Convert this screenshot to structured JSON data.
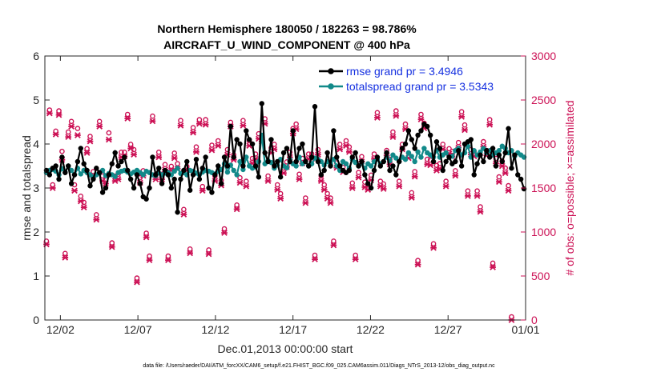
{
  "chart_data": {
    "type": "line",
    "title_line1": "Northern Hemisphere 180050 / 182263 = 98.786%",
    "title_line2": "AIRCRAFT_U_WIND_COMPONENT @ 400 hPa",
    "xlabel": "Dec.01,2013 00:00:00 start",
    "ylabel_left": "rmse and totalspread",
    "ylabel_right": "# of obs: o=possible; ×=assimilated",
    "footnote": "data file: /Users/raeder/DAI/ATM_forcXX/CAM6_setup/f.e21.FHIST_BGC.f09_025.CAM6assim.011/Diags_NTrS_2013-12/obs_diag_output.nc",
    "xlim": [
      0,
      31
    ],
    "ylim_left": [
      0,
      6
    ],
    "ylim_right": [
      0,
      3000
    ],
    "x_tick_positions": [
      1,
      6,
      11,
      16,
      21,
      26,
      31
    ],
    "x_tick_labels": [
      "12/02",
      "12/07",
      "12/12",
      "12/17",
      "12/22",
      "12/27",
      "01/01"
    ],
    "y_left_ticks": [
      "0",
      "1",
      "2",
      "3",
      "4",
      "5",
      "6"
    ],
    "y_right_ticks": [
      "0",
      "500",
      "1000",
      "1500",
      "2000",
      "2500",
      "3000"
    ],
    "colors": {
      "rmse": "#000000",
      "spread": "#128a8a",
      "obs": "#cc1155",
      "legend_rmse": "#1530e0",
      "legend_spread": "#1530e0"
    },
    "series": [
      {
        "name": "rmse grand pr = 3.4946",
        "values": [
          3.4,
          3.3,
          3.45,
          3.5,
          3.2,
          3.7,
          3.35,
          3.5,
          3.1,
          3.3,
          3.6,
          3.9,
          3.55,
          3.4,
          3.05,
          3.2,
          3.45,
          3.35,
          2.9,
          3.0,
          3.3,
          3.55,
          3.8,
          3.5,
          3.6,
          3.7,
          3.4,
          3.2,
          3.0,
          3.3,
          3.1,
          2.8,
          2.75,
          3.0,
          3.7,
          3.3,
          3.45,
          3.1,
          3.4,
          3.3,
          3.0,
          3.2,
          2.45,
          3.2,
          3.4,
          3.6,
          2.95,
          3.3,
          3.65,
          3.2,
          3.45,
          3.7,
          3.0,
          2.9,
          3.3,
          3.5,
          3.1,
          3.7,
          3.5,
          4.4,
          3.7,
          4.1,
          4.0,
          3.5,
          4.3,
          4.1,
          4.0,
          3.5,
          3.25,
          4.92,
          3.8,
          3.6,
          4.1,
          3.5,
          3.6,
          3.25,
          3.8,
          3.9,
          3.6,
          4.3,
          3.6,
          3.9,
          4.0,
          3.6,
          3.5,
          3.7,
          4.85,
          3.6,
          3.3,
          3.4,
          3.8,
          3.5,
          4.3,
          3.7,
          3.5,
          3.4,
          3.35,
          3.4,
          3.7,
          3.8,
          3.5,
          3.6,
          3.3,
          3.1,
          3.0,
          3.4,
          3.7,
          3.5,
          3.6,
          3.8,
          3.4,
          3.5,
          3.3,
          3.6,
          3.9,
          4.0,
          4.3,
          4.1,
          3.9,
          4.2,
          4.3,
          4.45,
          4.4,
          4.2,
          3.6,
          4.05,
          3.9,
          3.4,
          3.6,
          3.7,
          3.55,
          3.6,
          3.85,
          3.5,
          4.0,
          4.05,
          4.1,
          3.3,
          3.55,
          3.75,
          3.6,
          3.85,
          3.7,
          3.9,
          3.5,
          3.75,
          3.6,
          3.8,
          4.35,
          3.45,
          3.75,
          3.3,
          3.2,
          2.98
        ]
      },
      {
        "name": "totalspread grand pr = 3.5343",
        "values": [
          3.35,
          3.4,
          3.42,
          3.38,
          3.3,
          3.44,
          3.36,
          3.5,
          3.4,
          3.3,
          3.45,
          3.32,
          3.4,
          3.35,
          3.3,
          3.25,
          3.3,
          3.34,
          3.4,
          3.28,
          3.33,
          3.3,
          3.26,
          3.35,
          3.38,
          3.4,
          3.36,
          3.32,
          3.36,
          3.4,
          3.35,
          3.3,
          3.38,
          3.35,
          3.3,
          3.28,
          3.34,
          3.3,
          3.34,
          3.35,
          3.3,
          3.38,
          3.45,
          3.33,
          3.35,
          3.3,
          3.4,
          3.38,
          3.34,
          3.3,
          3.36,
          3.4,
          3.38,
          3.35,
          3.32,
          3.38,
          3.42,
          3.55,
          3.36,
          3.52,
          3.4,
          3.3,
          3.6,
          3.42,
          3.7,
          3.5,
          3.45,
          3.48,
          3.6,
          4.2,
          3.55,
          3.62,
          3.58,
          3.45,
          3.52,
          3.65,
          3.5,
          3.46,
          3.65,
          3.55,
          3.5,
          3.7,
          3.55,
          3.6,
          3.5,
          3.55,
          3.68,
          3.65,
          3.6,
          3.52,
          3.6,
          3.55,
          3.65,
          3.5,
          3.4,
          3.6,
          3.55,
          3.45,
          3.65,
          3.58,
          3.5,
          3.56,
          3.45,
          3.55,
          3.5,
          3.6,
          3.65,
          3.55,
          3.6,
          3.7,
          3.62,
          3.75,
          3.68,
          3.6,
          3.7,
          3.65,
          3.8,
          3.72,
          3.6,
          3.82,
          3.7,
          3.9,
          3.8,
          3.75,
          3.7,
          3.85,
          3.7,
          3.75,
          3.8,
          3.7,
          3.72,
          3.85,
          3.9,
          3.75,
          3.8,
          3.95,
          3.7,
          3.85,
          3.75,
          3.82,
          3.9,
          3.8,
          3.85,
          3.75,
          3.8,
          3.85,
          3.95,
          3.9,
          3.8,
          3.85,
          3.72,
          3.8,
          3.75,
          3.7
        ]
      },
      {
        "name": "possible",
        "values": [
          860,
          2350,
          1500,
          2110,
          2340,
          1880,
          720,
          2100,
          2220,
          1500,
          2140,
          1370,
          1300,
          1910,
          2050,
          1650,
          1160,
          2220,
          1600,
          1560,
          2090,
          840,
          1600,
          1620,
          1870,
          1870,
          2300,
          1960,
          1900,
          440,
          1580,
          1660,
          950,
          690,
          2280,
          1620,
          1870,
          1620,
          1730,
          690,
          1710,
          1860,
          1740,
          2230,
          1220,
          1710,
          770,
          2150,
          1930,
          2240,
          1480,
          2240,
          760,
          1950,
          1600,
          2000,
          1550,
          1000,
          1900,
          2210,
          1840,
          1270,
          1580,
          2230,
          1540,
          2000,
          1800,
          1850,
          2080,
          2050,
          2250,
          1600,
          1920,
          1960,
          1500,
          1400,
          1690,
          1760,
          1870,
          2140,
          2190,
          1620,
          1800,
          1350,
          1850,
          1850,
          700,
          1900,
          1600,
          1500,
          1400,
          1350,
          860,
          1750,
          1960,
          1700,
          2000,
          1930,
          1520,
          700,
          1640,
          1820,
          1530,
          1500,
          1610,
          1850,
          2320,
          1540,
          1510,
          1890,
          1790,
          2100,
          2340,
          1540,
          1960,
          2190,
          1860,
          1410,
          1650,
          640,
          2300,
          2200,
          1790,
          1780,
          830,
          1720,
          1740,
          1960,
          1540,
          1910,
          1880,
          1660,
          1980,
          2330,
          2180,
          1430,
          1900,
          1880,
          1430,
          1250,
          1990,
          1890,
          2240,
          610,
          1800,
          1590,
          1770,
          1690,
          1490,
          0
        ]
      },
      {
        "name": "assimilated",
        "values": [
          860,
          2350,
          1500,
          2110,
          2330,
          1820,
          710,
          2080,
          2200,
          1470,
          2100,
          1350,
          1280,
          1900,
          2030,
          1640,
          1140,
          2200,
          1580,
          1550,
          2050,
          830,
          1580,
          1600,
          1850,
          1860,
          2290,
          1950,
          1880,
          430,
          1560,
          1640,
          940,
          680,
          2260,
          1600,
          1850,
          1600,
          1710,
          680,
          1700,
          1840,
          1720,
          2210,
          1200,
          1700,
          760,
          2130,
          1910,
          2230,
          1470,
          2220,
          750,
          1930,
          1580,
          1980,
          1530,
          990,
          1880,
          2200,
          1820,
          1260,
          1560,
          2210,
          1520,
          1980,
          1780,
          1830,
          2060,
          2030,
          2230,
          1580,
          1900,
          1940,
          1480,
          1380,
          1670,
          1740,
          1850,
          2120,
          2170,
          1600,
          1780,
          1330,
          1830,
          1830,
          690,
          1880,
          1580,
          1480,
          1380,
          1330,
          850,
          1730,
          1940,
          1680,
          1980,
          1910,
          1500,
          690,
          1620,
          1800,
          1510,
          1480,
          1590,
          1830,
          2300,
          1520,
          1490,
          1870,
          1770,
          2080,
          2320,
          1520,
          1940,
          2170,
          1840,
          1390,
          1630,
          630,
          2280,
          2180,
          1770,
          1760,
          820,
          1700,
          1720,
          1940,
          1520,
          1890,
          1860,
          1640,
          1960,
          2310,
          2160,
          1410,
          1880,
          1860,
          1410,
          1230,
          1970,
          1870,
          2220,
          600,
          1780,
          1570,
          1750,
          1670,
          1470,
          0
        ]
      }
    ]
  }
}
